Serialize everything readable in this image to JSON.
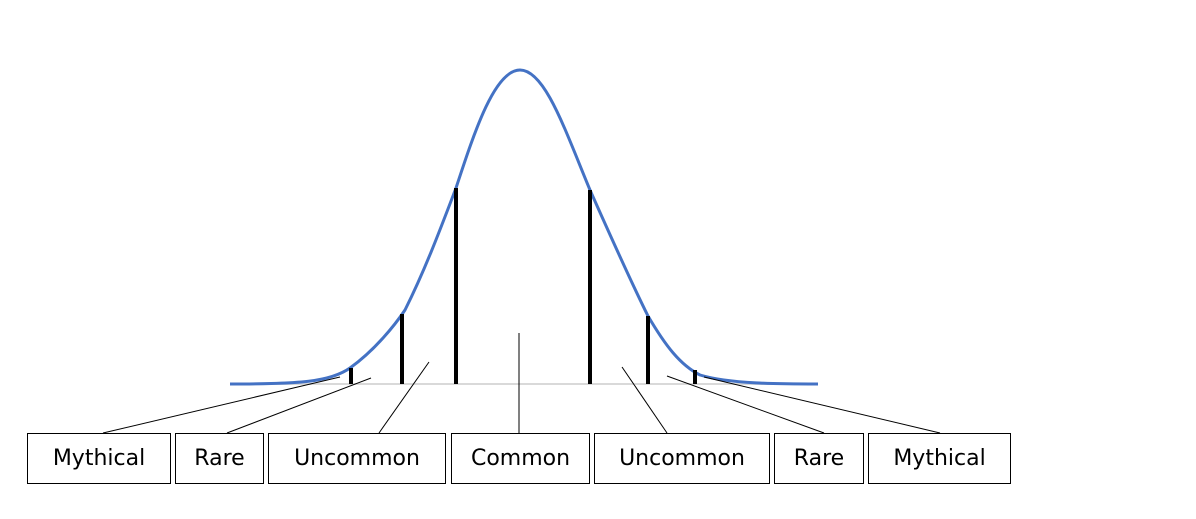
{
  "diagram": {
    "curve_color": "#4472C4",
    "line_color": "#000000",
    "baseline_color": "#D9D9D9",
    "labels": [
      "Mythical",
      "Rare",
      "Uncommon",
      "Common",
      "Uncommon",
      "Rare",
      "Mythical"
    ]
  }
}
